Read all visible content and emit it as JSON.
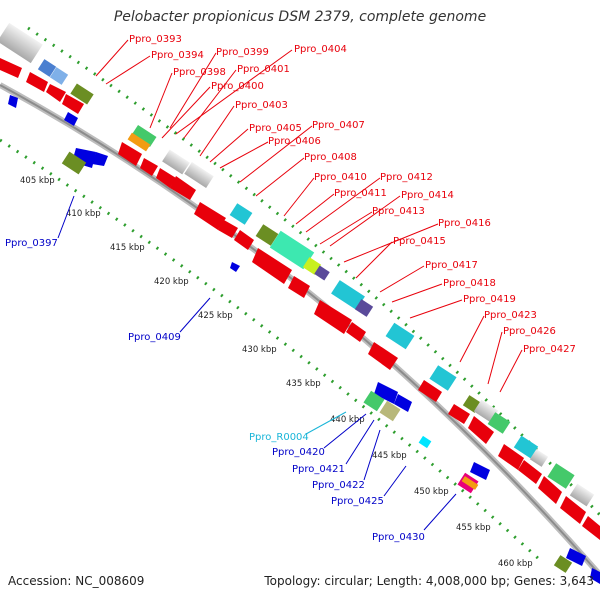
{
  "title": "Pelobacter propionicus DSM 2379, complete genome",
  "footer": {
    "accession": "Accession: NC_008609",
    "summary": "Topology: circular; Length: 4,008,000 bp; Genes: 3,643"
  },
  "scale_labels": [
    "405 kbp",
    "410 kbp",
    "415 kbp",
    "420 kbp",
    "425 kbp",
    "430 kbp",
    "435 kbp",
    "440 kbp",
    "445 kbp",
    "450 kbp",
    "455 kbp",
    "460 kbp"
  ],
  "gene_labels_forward": [
    "Ppro_0393",
    "Ppro_0394",
    "Ppro_0399",
    "Ppro_0398",
    "Ppro_0404",
    "Ppro_0401",
    "Ppro_0400",
    "Ppro_0403",
    "Ppro_0405",
    "Ppro_0407",
    "Ppro_0406",
    "Ppro_0408",
    "Ppro_0410",
    "Ppro_0412",
    "Ppro_0411",
    "Ppro_0414",
    "Ppro_0413",
    "Ppro_0416",
    "Ppro_0415",
    "Ppro_0417",
    "Ppro_0418",
    "Ppro_0419",
    "Ppro_0423",
    "Ppro_0426",
    "Ppro_0427"
  ],
  "gene_labels_reverse": [
    "Ppro_0397",
    "Ppro_0409",
    "Ppro_0420",
    "Ppro_0421",
    "Ppro_0422",
    "Ppro_0425",
    "Ppro_0430"
  ],
  "gene_labels_rna": [
    "Ppro_R0004"
  ],
  "colors": {
    "forward_label": "#e8000b",
    "reverse_label": "#0000c8",
    "rna_label": "#19b5d8",
    "backbone": "#8c8c8c",
    "tick": "#2e9e2e"
  }
}
